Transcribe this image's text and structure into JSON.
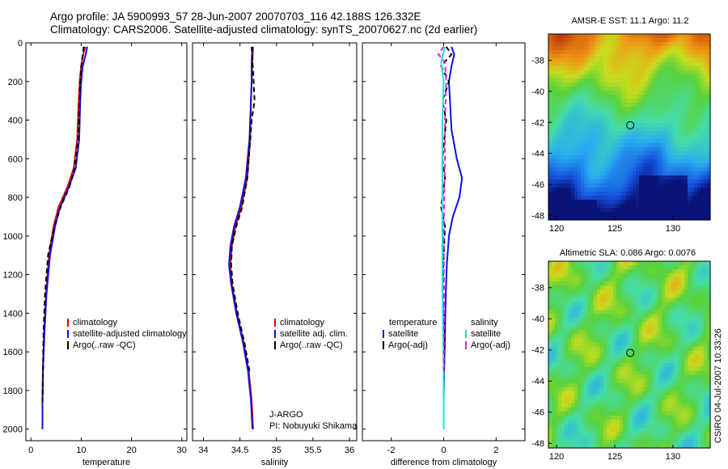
{
  "header": {
    "line1": "Argo profile: JA 5900993_57 28-Jun-2007 20070703_116 42.188S 126.332E",
    "line2": "Climatology: CARS2006. Satellite-adjusted climatology: synTS_20070627.nc (2d earlier)"
  },
  "stamp": "CSIRO 04-Jul-2007 10:33:26",
  "colors": {
    "red": "#e00000",
    "blue": "#1010e0",
    "black": "#000000",
    "cyan": "#20e0e0",
    "magenta": "#e020e0"
  },
  "chart_data": [
    {
      "type": "line",
      "name": "temperature",
      "xlabel": "temperature",
      "ylabel": "",
      "xlim": [
        -1,
        31
      ],
      "ylim": [
        0,
        2060
      ],
      "xticks": [
        "0",
        "10",
        "20",
        "30"
      ],
      "xtick_values": [
        0,
        10,
        20,
        30
      ],
      "yticks": [
        "0",
        "200",
        "400",
        "600",
        "800",
        "1000",
        "1200",
        "1400",
        "1600",
        "1800",
        "2000"
      ],
      "ytick_values": [
        0,
        200,
        400,
        600,
        800,
        1000,
        1200,
        1400,
        1600,
        1800,
        2000
      ],
      "legend": [
        "climatology",
        "satellite-adjusted climatology",
        "Argo(..raw -QC)"
      ],
      "legend_colors": [
        "#e00000",
        "#1010e0",
        "#000000"
      ],
      "series": [
        {
          "name": "climatology",
          "color": "#e00000",
          "dash": "",
          "x": [
            10.8,
            10.4,
            10.0,
            9.7,
            9.5,
            9.2,
            8.5,
            7.2,
            5.5,
            4.5,
            3.6,
            3.0,
            2.6,
            2.4,
            2.3,
            2.3
          ],
          "y": [
            20,
            60,
            120,
            200,
            300,
            500,
            650,
            750,
            850,
            950,
            1100,
            1300,
            1500,
            1700,
            1850,
            2000
          ]
        },
        {
          "name": "satellite-adjusted climatology",
          "color": "#1010e0",
          "dash": "",
          "x": [
            11.2,
            10.9,
            10.3,
            10.0,
            9.8,
            9.6,
            8.9,
            7.5,
            5.8,
            4.8,
            3.8,
            3.1,
            2.7,
            2.4,
            2.3,
            2.3
          ],
          "y": [
            20,
            60,
            120,
            200,
            300,
            500,
            650,
            750,
            850,
            950,
            1100,
            1300,
            1500,
            1700,
            1850,
            2000
          ]
        },
        {
          "name": "Argo(..raw -QC)",
          "color": "#000000",
          "dash": "6,4",
          "x": [
            10.5,
            10.3,
            10.0,
            9.8,
            9.4,
            8.7,
            7.6,
            5.9,
            4.7,
            3.4,
            2.8,
            2.5,
            2.4,
            2.3
          ],
          "y": [
            20,
            60,
            120,
            200,
            500,
            650,
            750,
            850,
            950,
            1100,
            1300,
            1500,
            1700,
            1870
          ]
        }
      ]
    },
    {
      "type": "line",
      "name": "salinity",
      "xlabel": "salinity",
      "xlim": [
        33.85,
        36.1
      ],
      "ylim": [
        0,
        2060
      ],
      "xticks": [
        "34",
        "34.5",
        "35",
        "35.5",
        "36"
      ],
      "xtick_values": [
        34,
        34.5,
        35,
        35.5,
        36
      ],
      "legend": [
        "climatology",
        "satellite adj. clim.",
        "Argo(..raw -QC)"
      ],
      "legend_colors": [
        "#e00000",
        "#1010e0",
        "#000000"
      ],
      "annotation": [
        "J-ARGO",
        "PI: Nobuyuki Shikama"
      ],
      "series": [
        {
          "name": "climatology",
          "color": "#e00000",
          "dash": "",
          "x": [
            34.68,
            34.67,
            34.66,
            34.65,
            34.64,
            34.6,
            34.52,
            34.44,
            34.39,
            34.37,
            34.39,
            34.46,
            34.55,
            34.62,
            34.66,
            34.68
          ],
          "y": [
            20,
            100,
            200,
            300,
            500,
            700,
            850,
            950,
            1050,
            1150,
            1250,
            1400,
            1550,
            1700,
            1850,
            2000
          ]
        },
        {
          "name": "satellite adj. clim.",
          "color": "#1010e0",
          "dash": "",
          "x": [
            34.67,
            34.66,
            34.66,
            34.65,
            34.63,
            34.58,
            34.5,
            34.42,
            34.37,
            34.35,
            34.38,
            34.45,
            34.54,
            34.61,
            34.65,
            34.67
          ],
          "y": [
            20,
            100,
            200,
            300,
            500,
            700,
            850,
            950,
            1050,
            1150,
            1250,
            1400,
            1550,
            1700,
            1850,
            2000
          ]
        },
        {
          "name": "Argo(..raw -QC)",
          "color": "#000000",
          "dash": "6,4",
          "x": [
            34.66,
            34.68,
            34.7,
            34.66,
            34.64,
            34.6,
            34.53,
            34.45,
            34.39,
            34.38,
            34.4,
            34.47,
            34.56,
            34.63
          ],
          "y": [
            20,
            150,
            300,
            400,
            500,
            700,
            850,
            950,
            1050,
            1150,
            1250,
            1400,
            1550,
            1700
          ]
        }
      ]
    },
    {
      "type": "line",
      "name": "difference",
      "xlabel": "difference from climatology",
      "xlim": [
        -3.1,
        3.1
      ],
      "ylim": [
        0,
        2060
      ],
      "xticks": [
        "-2",
        "0",
        "2"
      ],
      "xtick_values": [
        -2,
        0,
        2
      ],
      "legend_headers": [
        "temperature",
        "salinity"
      ],
      "legend": [
        "satellite",
        "Argo(-adj)",
        "satellite",
        "Argo(-adj)"
      ],
      "legend_colors": [
        "#1010e0",
        "#000000",
        "#20e0e0",
        "#e020e0"
      ],
      "series": [
        {
          "name": "temperature satellite",
          "color": "#1010e0",
          "dash": "",
          "x": [
            0.3,
            0.4,
            0.3,
            0.2,
            0.3,
            0.5,
            0.7,
            0.6,
            0.35,
            0.2,
            0.12,
            0.08,
            0.05,
            0.02,
            0.0,
            0.0
          ],
          "y": [
            20,
            60,
            120,
            200,
            450,
            600,
            700,
            800,
            900,
            1000,
            1150,
            1300,
            1500,
            1700,
            1850,
            2000
          ]
        },
        {
          "name": "Argo temperature",
          "color": "#000000",
          "dash": "6,4",
          "x": [
            0.1,
            0.3,
            -0.1,
            0.2,
            -0.05,
            0.1,
            -0.05,
            0.05,
            -0.1,
            0.05,
            0.0,
            -0.05,
            0.05,
            0.0
          ],
          "y": [
            20,
            60,
            120,
            200,
            300,
            400,
            600,
            700,
            850,
            950,
            1100,
            1300,
            1500,
            1800
          ]
        },
        {
          "name": "salinity satellite",
          "color": "#20e0e0",
          "dash": "",
          "x": [
            0.05,
            -0.1,
            0.0,
            -0.05,
            -0.05,
            -0.05,
            -0.05,
            -0.05,
            -0.03,
            0.0,
            0.0
          ],
          "y": [
            20,
            100,
            200,
            400,
            600,
            800,
            1000,
            1200,
            1400,
            1700,
            2000
          ]
        },
        {
          "name": "Argo salinity",
          "color": "#e020e0",
          "dash": "6,4",
          "x": [
            0.0,
            -0.2,
            0.05,
            0.1,
            0.05,
            0.05,
            0.02,
            0.0,
            0.02,
            0.0
          ],
          "y": [
            20,
            60,
            100,
            200,
            400,
            600,
            800,
            1000,
            1400,
            1700
          ]
        }
      ]
    },
    {
      "type": "heatmap",
      "name": "amsr-sst",
      "title": "AMSR-E SST: 11.1 Argo: 11.2",
      "xticks": [
        "120",
        "125",
        "130"
      ],
      "xtick_values": [
        120,
        125,
        130
      ],
      "yticks": [
        "-38",
        "-40",
        "-42",
        "-44",
        "-46",
        "-48"
      ],
      "ytick_values": [
        -38,
        -40,
        -42,
        -44,
        -46,
        -48
      ],
      "xlim": [
        119.3,
        133.2
      ],
      "ylim": [
        -48.3,
        -36.3
      ],
      "marker": [
        126.33,
        -42.19
      ]
    },
    {
      "type": "heatmap",
      "name": "altimetric-sla",
      "title": "Altimetric SLA: 0.086 Argo: 0.0076",
      "xticks": [
        "120",
        "125",
        "130"
      ],
      "xtick_values": [
        120,
        125,
        130
      ],
      "yticks": [
        "-38",
        "-40",
        "-42",
        "-44",
        "-46",
        "-48"
      ],
      "ytick_values": [
        -38,
        -40,
        -42,
        -44,
        -46,
        -48
      ],
      "xlim": [
        119.3,
        133.2
      ],
      "ylim": [
        -48.3,
        -36.3
      ],
      "marker": [
        126.33,
        -42.19
      ]
    }
  ]
}
